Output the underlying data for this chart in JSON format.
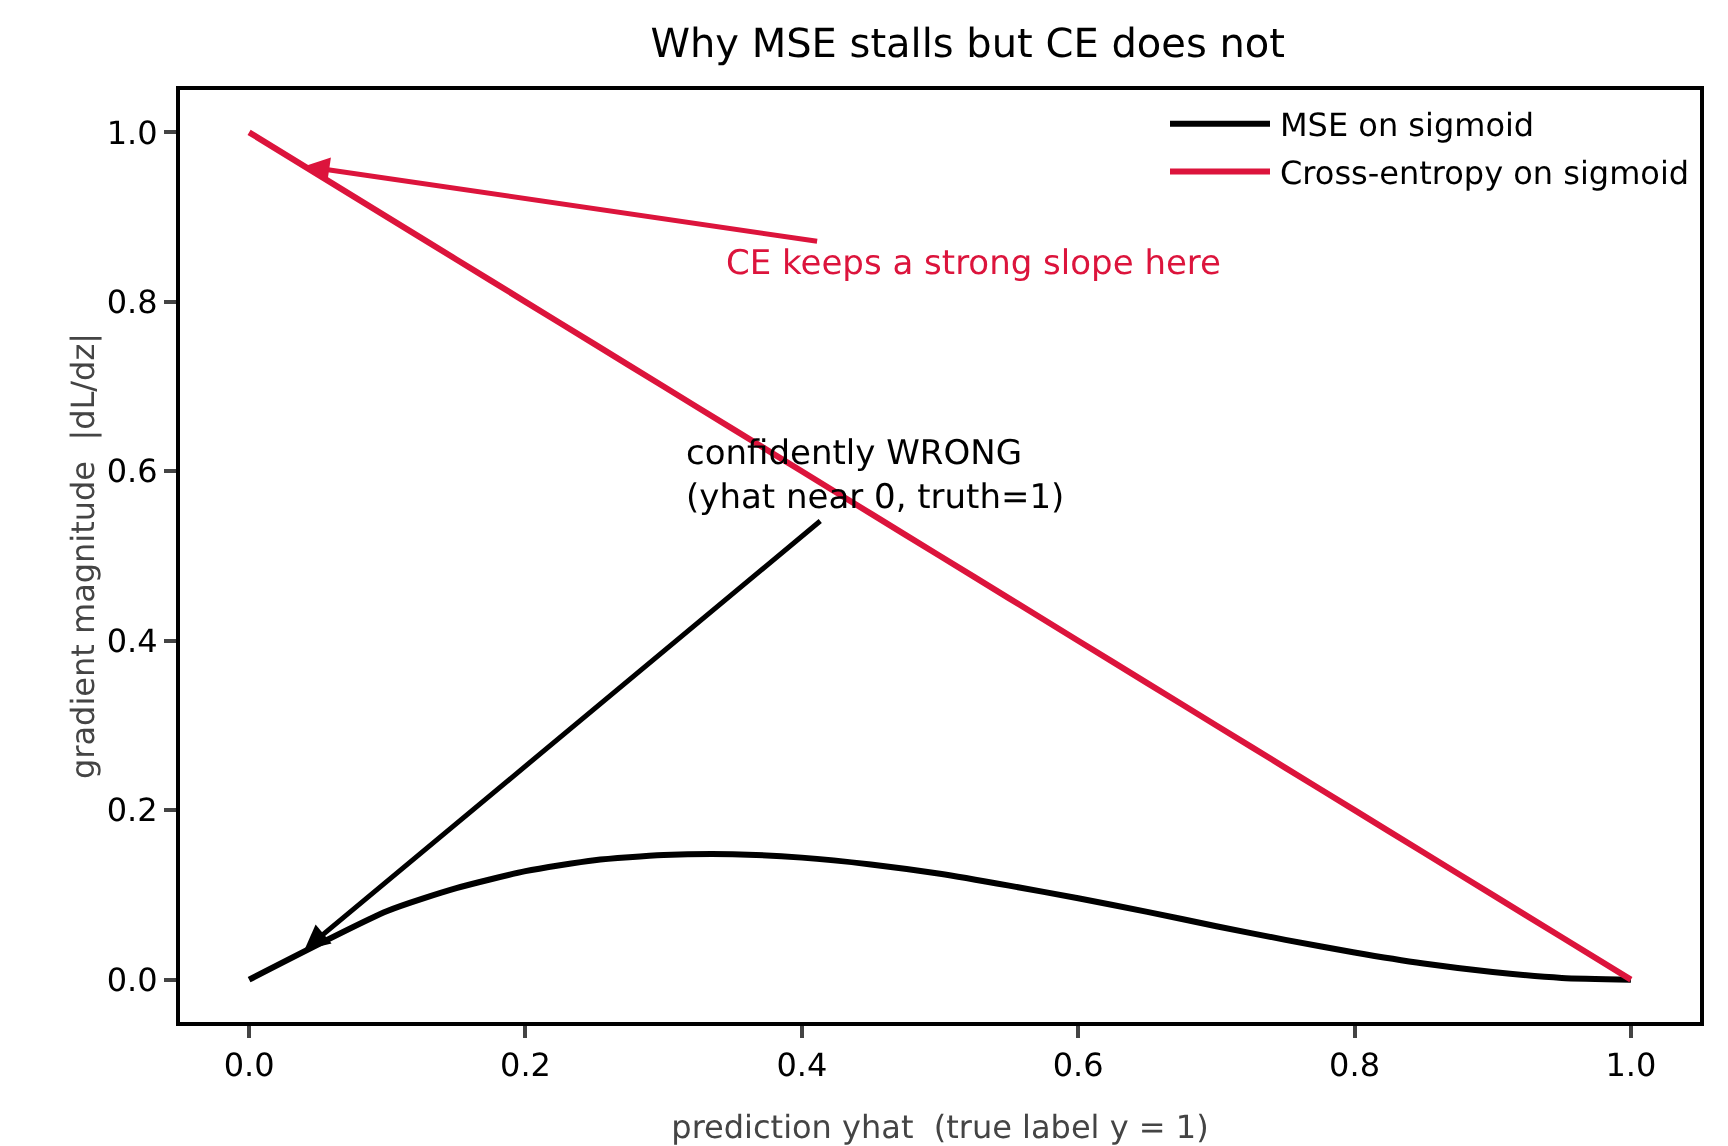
{
  "chart_data": {
    "type": "line",
    "title": "Why MSE stalls but CE does not",
    "xlabel": "prediction yhat  (true label y = 1)",
    "ylabel": "gradient magnitude  |dL/dz|",
    "x": [
      0,
      0.1,
      0.15,
      0.2,
      0.25,
      0.3,
      0.35,
      0.4,
      0.45,
      0.5,
      0.55,
      0.6,
      0.65,
      0.7,
      0.75,
      0.8,
      0.85,
      0.9,
      0.95,
      1
    ],
    "series": [
      {
        "name": "MSE on sigmoid",
        "color": "#000000",
        "values": [
          0,
          0.081,
          0.108,
          0.128,
          0.141,
          0.147,
          0.148,
          0.144,
          0.136,
          0.125,
          0.111,
          0.096,
          0.08,
          0.063,
          0.047,
          0.032,
          0.019,
          0.009,
          0.002,
          0
        ]
      },
      {
        "name": "Cross-entropy on sigmoid",
        "color": "#dc143c",
        "values": [
          1,
          0.9,
          0.85,
          0.8,
          0.75,
          0.7,
          0.65,
          0.6,
          0.55,
          0.5,
          0.45,
          0.4,
          0.35,
          0.3,
          0.25,
          0.2,
          0.15,
          0.1,
          0.05,
          0
        ]
      }
    ],
    "annotations": [
      {
        "text": "CE keeps a strong slope here",
        "x": 0.04,
        "y": 0.96
      },
      {
        "text": "confidently WRONG\n(yhat near 0, truth=1)",
        "x": 0.04,
        "y": 0.035
      }
    ],
    "xlim": [
      -0.05,
      1.05
    ],
    "xticks": [
      {
        "value": 0,
        "label": "0.0"
      },
      {
        "value": 0.2,
        "label": "0.2"
      },
      {
        "value": 0.4,
        "label": "0.4"
      },
      {
        "value": 0.6,
        "label": "0.6"
      },
      {
        "value": 0.8,
        "label": "0.8"
      },
      {
        "value": 1,
        "label": "1.0"
      }
    ],
    "ylim": [
      -0.05,
      1.05
    ],
    "yticks": [
      {
        "value": 0,
        "label": "0.0"
      },
      {
        "value": 0.2,
        "label": "0.2"
      },
      {
        "value": 0.4,
        "label": "0.4"
      },
      {
        "value": 0.6,
        "label": "0.6"
      },
      {
        "value": 0.8,
        "label": "0.8"
      },
      {
        "value": 1,
        "label": "1.0"
      }
    ],
    "grid": false,
    "legend": "top right",
    "line_style": "solid",
    "marker": "none"
  }
}
